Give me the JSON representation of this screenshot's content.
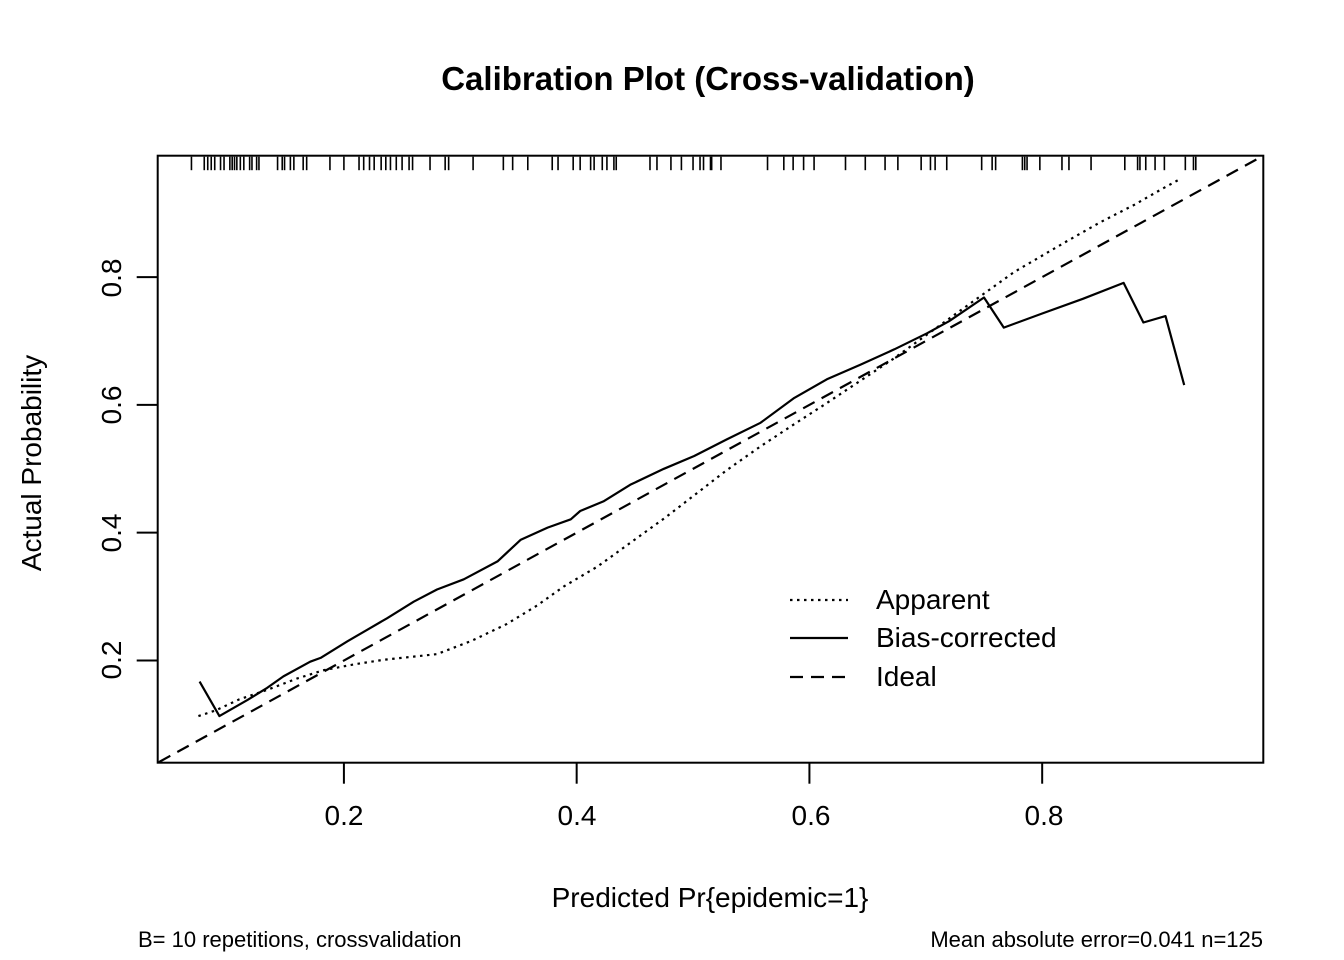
{
  "page": {
    "background": "#ffffff",
    "foreground": "#000000"
  },
  "chart_data": {
    "type": "line",
    "title": "Calibration Plot (Cross-validation)",
    "xlabel": "Predicted Pr{epidemic=1}",
    "ylabel": "Actual Probability",
    "xlim": [
      0.04,
      0.99
    ],
    "ylim": [
      0.04,
      0.99
    ],
    "grid": false,
    "x_ticks": [
      0.2,
      0.4,
      0.6,
      0.8
    ],
    "x_tick_labels": [
      "0.2",
      "0.4",
      "0.6",
      "0.8"
    ],
    "y_ticks": [
      0.2,
      0.4,
      0.6,
      0.8
    ],
    "y_tick_labels": [
      "0.2",
      "0.4",
      "0.6",
      "0.8"
    ],
    "legend": {
      "position": "inside-bottom-right",
      "entries": [
        {
          "label": "Apparent",
          "style": "dotted"
        },
        {
          "label": "Bias-corrected",
          "style": "solid"
        },
        {
          "label": "Ideal",
          "style": "dashed"
        }
      ]
    },
    "series": [
      {
        "name": "Ideal",
        "style": "dashed",
        "points": [
          [
            0.041,
            0.041
          ],
          [
            0.99,
            0.99
          ]
        ]
      },
      {
        "name": "Apparent",
        "style": "dotted",
        "points": [
          [
            0.075,
            0.113
          ],
          [
            0.09,
            0.122
          ],
          [
            0.11,
            0.139
          ],
          [
            0.134,
            0.154
          ],
          [
            0.16,
            0.172
          ],
          [
            0.183,
            0.185
          ],
          [
            0.209,
            0.194
          ],
          [
            0.234,
            0.201
          ],
          [
            0.26,
            0.206
          ],
          [
            0.28,
            0.21
          ],
          [
            0.31,
            0.231
          ],
          [
            0.34,
            0.257
          ],
          [
            0.366,
            0.286
          ],
          [
            0.389,
            0.316
          ],
          [
            0.418,
            0.347
          ],
          [
            0.446,
            0.384
          ],
          [
            0.475,
            0.422
          ],
          [
            0.495,
            0.45
          ],
          [
            0.529,
            0.498
          ],
          [
            0.558,
            0.535
          ],
          [
            0.587,
            0.57
          ],
          [
            0.615,
            0.603
          ],
          [
            0.644,
            0.638
          ],
          [
            0.672,
            0.672
          ],
          [
            0.701,
            0.71
          ],
          [
            0.73,
            0.748
          ],
          [
            0.776,
            0.808
          ],
          [
            0.82,
            0.855
          ],
          [
            0.85,
            0.886
          ],
          [
            0.879,
            0.913
          ],
          [
            0.903,
            0.938
          ],
          [
            0.917,
            0.952
          ]
        ]
      },
      {
        "name": "Bias-corrected",
        "style": "solid",
        "points": [
          [
            0.076,
            0.167
          ],
          [
            0.093,
            0.113
          ],
          [
            0.117,
            0.138
          ],
          [
            0.134,
            0.157
          ],
          [
            0.148,
            0.175
          ],
          [
            0.171,
            0.198
          ],
          [
            0.18,
            0.204
          ],
          [
            0.203,
            0.23
          ],
          [
            0.22,
            0.248
          ],
          [
            0.237,
            0.266
          ],
          [
            0.26,
            0.292
          ],
          [
            0.28,
            0.311
          ],
          [
            0.303,
            0.327
          ],
          [
            0.332,
            0.355
          ],
          [
            0.352,
            0.389
          ],
          [
            0.375,
            0.408
          ],
          [
            0.395,
            0.421
          ],
          [
            0.403,
            0.434
          ],
          [
            0.423,
            0.449
          ],
          [
            0.446,
            0.475
          ],
          [
            0.475,
            0.5
          ],
          [
            0.501,
            0.52
          ],
          [
            0.529,
            0.546
          ],
          [
            0.558,
            0.572
          ],
          [
            0.587,
            0.611
          ],
          [
            0.615,
            0.64
          ],
          [
            0.644,
            0.663
          ],
          [
            0.673,
            0.687
          ],
          [
            0.701,
            0.712
          ],
          [
            0.72,
            0.731
          ],
          [
            0.75,
            0.768
          ],
          [
            0.767,
            0.721
          ],
          [
            0.8,
            0.743
          ],
          [
            0.835,
            0.766
          ],
          [
            0.87,
            0.791
          ],
          [
            0.887,
            0.729
          ],
          [
            0.906,
            0.739
          ],
          [
            0.922,
            0.631
          ]
        ]
      }
    ],
    "rug_x": [
      0.069,
      0.08,
      0.083,
      0.086,
      0.089,
      0.094,
      0.097,
      0.102,
      0.104,
      0.106,
      0.108,
      0.111,
      0.114,
      0.119,
      0.121,
      0.125,
      0.127,
      0.143,
      0.147,
      0.149,
      0.154,
      0.157,
      0.165,
      0.168,
      0.188,
      0.2,
      0.213,
      0.217,
      0.222,
      0.226,
      0.232,
      0.236,
      0.24,
      0.245,
      0.25,
      0.256,
      0.259,
      0.274,
      0.287,
      0.29,
      0.311,
      0.337,
      0.345,
      0.358,
      0.379,
      0.384,
      0.397,
      0.403,
      0.412,
      0.415,
      0.422,
      0.426,
      0.432,
      0.434,
      0.463,
      0.469,
      0.481,
      0.49,
      0.5,
      0.506,
      0.509,
      0.515,
      0.516,
      0.524,
      0.564,
      0.578,
      0.586,
      0.595,
      0.604,
      0.631,
      0.648,
      0.665,
      0.676,
      0.696,
      0.704,
      0.708,
      0.718,
      0.748,
      0.757,
      0.76,
      0.783,
      0.785,
      0.787,
      0.798,
      0.817,
      0.823,
      0.842,
      0.871,
      0.882,
      0.884,
      0.889,
      0.897,
      0.905,
      0.923,
      0.93,
      0.932
    ],
    "footnote_left": "B= 10 repetitions, crossvalidation",
    "footnote_right": "Mean absolute error=0.041 n=125"
  }
}
